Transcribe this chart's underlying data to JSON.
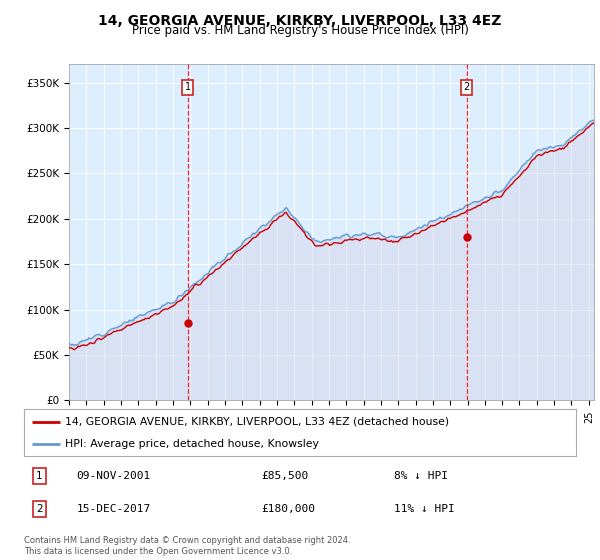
{
  "title": "14, GEORGIA AVENUE, KIRKBY, LIVERPOOL, L33 4EZ",
  "subtitle": "Price paid vs. HM Land Registry's House Price Index (HPI)",
  "legend_line1": "14, GEORGIA AVENUE, KIRKBY, LIVERPOOL, L33 4EZ (detached house)",
  "legend_line2": "HPI: Average price, detached house, Knowsley",
  "annotation1_date": "09-NOV-2001",
  "annotation1_price": "£85,500",
  "annotation1_hpi": "8% ↓ HPI",
  "annotation2_date": "15-DEC-2017",
  "annotation2_price": "£180,000",
  "annotation2_hpi": "11% ↓ HPI",
  "footer": "Contains HM Land Registry data © Crown copyright and database right 2024.\nThis data is licensed under the Open Government Licence v3.0.",
  "red_color": "#cc0000",
  "blue_color": "#6699cc",
  "blue_fill": "#bbccee",
  "ylim": [
    0,
    370000
  ],
  "yticks": [
    0,
    50000,
    100000,
    150000,
    200000,
    250000,
    300000,
    350000
  ],
  "ytick_labels": [
    "£0",
    "£50K",
    "£100K",
    "£150K",
    "£200K",
    "£250K",
    "£300K",
    "£350K"
  ],
  "vline1_x": 2001.86,
  "vline2_x": 2017.96,
  "sale1_x": 2001.86,
  "sale1_y": 85500,
  "sale2_x": 2017.96,
  "sale2_y": 180000,
  "xmin": 1995,
  "xmax": 2025.3
}
